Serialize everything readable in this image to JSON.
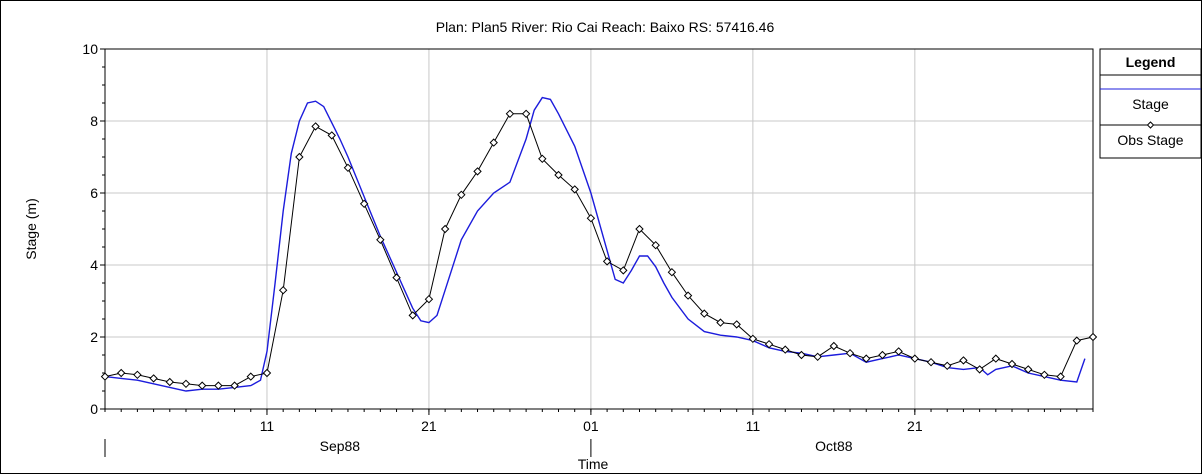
{
  "chart_data": {
    "type": "line",
    "title": "Plan: Plan5   River: Rio Cai   Reach: Baixo   RS: 57416.46",
    "xlabel": "Time",
    "ylabel": "Stage (m)",
    "ylim": [
      0,
      10
    ],
    "xlim": [
      1,
      62
    ],
    "y_ticks": [
      0,
      2,
      4,
      6,
      8,
      10
    ],
    "x_ticks": [
      {
        "x": 11,
        "label": "11"
      },
      {
        "x": 21,
        "label": "21"
      },
      {
        "x": 31,
        "label": "01"
      },
      {
        "x": 41,
        "label": "11"
      },
      {
        "x": 51,
        "label": "21"
      }
    ],
    "month_labels": [
      {
        "x": 15.5,
        "label": "Sep88"
      },
      {
        "x": 46,
        "label": "Oct88"
      }
    ],
    "month_boundaries": [
      1,
      31
    ],
    "grid": true,
    "legend": {
      "title": "Legend",
      "placement": "right"
    },
    "series": [
      {
        "name": "Stage",
        "color": "#1c1cdc",
        "marker": "none",
        "x": [
          1,
          2,
          3,
          4,
          5,
          6,
          7,
          8,
          9,
          10,
          10.6,
          11,
          11.5,
          12,
          12.5,
          13,
          13.5,
          14,
          14.5,
          15,
          15.5,
          16,
          17,
          18,
          19,
          20,
          20.5,
          21,
          21.5,
          22,
          23,
          24,
          25,
          26,
          27,
          27.5,
          28,
          28.5,
          29,
          30,
          31,
          32,
          32.5,
          33,
          33.5,
          34,
          34.5,
          35,
          35.5,
          36,
          37,
          38,
          39,
          40,
          41,
          42,
          43,
          44,
          45,
          46,
          47,
          48,
          49,
          50,
          51,
          52,
          53,
          54,
          55,
          55.5,
          56,
          57,
          58,
          59,
          60,
          61,
          61.5
        ],
        "y": [
          0.9,
          0.85,
          0.8,
          0.7,
          0.6,
          0.5,
          0.55,
          0.55,
          0.6,
          0.65,
          0.8,
          1.6,
          3.5,
          5.5,
          7.1,
          8.0,
          8.5,
          8.55,
          8.4,
          7.95,
          7.5,
          7.0,
          5.9,
          4.8,
          3.8,
          2.8,
          2.45,
          2.4,
          2.6,
          3.3,
          4.7,
          5.5,
          6.0,
          6.3,
          7.5,
          8.3,
          8.65,
          8.6,
          8.2,
          7.3,
          6.0,
          4.4,
          3.6,
          3.5,
          3.85,
          4.25,
          4.25,
          3.95,
          3.5,
          3.1,
          2.5,
          2.15,
          2.05,
          2.0,
          1.9,
          1.7,
          1.6,
          1.55,
          1.45,
          1.5,
          1.55,
          1.3,
          1.4,
          1.5,
          1.4,
          1.3,
          1.15,
          1.1,
          1.15,
          0.95,
          1.1,
          1.2,
          1.0,
          0.9,
          0.8,
          0.75,
          1.4
        ]
      },
      {
        "name": "Obs Stage",
        "color": "#000000",
        "marker": "diamond",
        "x": [
          1,
          2,
          3,
          4,
          5,
          6,
          7,
          8,
          9,
          10,
          11,
          12,
          13,
          14,
          15,
          16,
          17,
          18,
          19,
          20,
          21,
          22,
          23,
          24,
          25,
          26,
          27,
          28,
          29,
          30,
          31,
          32,
          33,
          34,
          35,
          36,
          37,
          38,
          39,
          40,
          41,
          42,
          43,
          44,
          45,
          46,
          47,
          48,
          49,
          50,
          51,
          52,
          53,
          54,
          55,
          56,
          57,
          58,
          59,
          60,
          61,
          62
        ],
        "y": [
          0.9,
          1.0,
          0.95,
          0.85,
          0.75,
          0.7,
          0.65,
          0.65,
          0.65,
          0.9,
          1.0,
          3.3,
          7.0,
          7.85,
          7.6,
          6.7,
          5.7,
          4.7,
          3.65,
          2.6,
          3.05,
          5.0,
          5.95,
          6.6,
          7.4,
          8.2,
          8.2,
          6.95,
          6.5,
          6.1,
          5.3,
          4.1,
          3.85,
          5.0,
          4.55,
          3.8,
          3.15,
          2.65,
          2.4,
          2.35,
          1.95,
          1.8,
          1.65,
          1.5,
          1.45,
          1.75,
          1.55,
          1.4,
          1.5,
          1.6,
          1.4,
          1.3,
          1.2,
          1.35,
          1.1,
          1.4,
          1.25,
          1.1,
          0.95,
          0.9,
          1.9,
          2.0
        ]
      }
    ]
  }
}
